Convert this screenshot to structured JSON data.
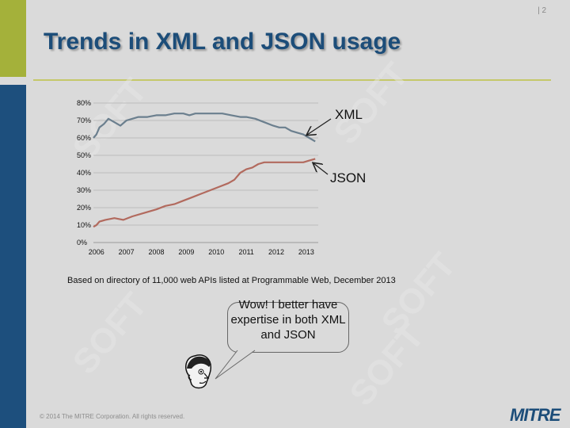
{
  "slide": {
    "number": "| 2",
    "title": "Trends in XML and JSON usage",
    "note": "Based on directory of 11,000 web APIs listed at Programmable Web, December 2013",
    "bubble_text": "Wow! I better have expertise in both XML and JSON",
    "copyright": "© 2014 The MITRE Corporation. All rights reserved.",
    "logo": "MITRE",
    "watermark": "SOFT"
  },
  "chart_data": {
    "type": "line",
    "y_ticks": [
      "80%",
      "70%",
      "60%",
      "50%",
      "40%",
      "30%",
      "20%",
      "10%",
      "0%"
    ],
    "x_ticks": [
      "2006",
      "2007",
      "2008",
      "2009",
      "2010",
      "2011",
      "2012",
      "2013"
    ],
    "ylim": [
      0,
      80
    ],
    "x_range": [
      2005.9,
      2013.4
    ],
    "grid": true,
    "series": [
      {
        "name": "XML",
        "color": "#6b7f8e",
        "x": [
          2005.9,
          2006.0,
          2006.1,
          2006.25,
          2006.4,
          2006.6,
          2006.8,
          2007.0,
          2007.2,
          2007.4,
          2007.7,
          2008.0,
          2008.3,
          2008.6,
          2008.9,
          2009.1,
          2009.3,
          2009.6,
          2009.9,
          2010.2,
          2010.5,
          2010.8,
          2011.0,
          2011.3,
          2011.6,
          2011.9,
          2012.1,
          2012.3,
          2012.5,
          2012.7,
          2012.9,
          2013.1,
          2013.3
        ],
        "y": [
          60,
          62,
          66,
          68,
          71,
          69,
          67,
          70,
          71,
          72,
          72,
          73,
          73,
          74,
          74,
          73,
          74,
          74,
          74,
          74,
          73,
          72,
          72,
          71,
          69,
          67,
          66,
          66,
          64,
          63,
          62,
          60,
          58
        ]
      },
      {
        "name": "JSON",
        "color": "#b26a5e",
        "x": [
          2005.9,
          2006.0,
          2006.1,
          2006.3,
          2006.6,
          2006.9,
          2007.2,
          2007.6,
          2008.0,
          2008.3,
          2008.6,
          2008.9,
          2009.2,
          2009.5,
          2009.8,
          2010.1,
          2010.4,
          2010.6,
          2010.8,
          2011.0,
          2011.2,
          2011.4,
          2011.6,
          2011.8,
          2012.0,
          2012.3,
          2012.6,
          2012.9,
          2013.1,
          2013.3
        ],
        "y": [
          9,
          10,
          12,
          13,
          14,
          13,
          15,
          17,
          19,
          21,
          22,
          24,
          26,
          28,
          30,
          32,
          34,
          36,
          40,
          42,
          43,
          45,
          46,
          46,
          46,
          46,
          46,
          46,
          47,
          48
        ]
      }
    ],
    "annotations": [
      "XML",
      "JSON"
    ]
  }
}
